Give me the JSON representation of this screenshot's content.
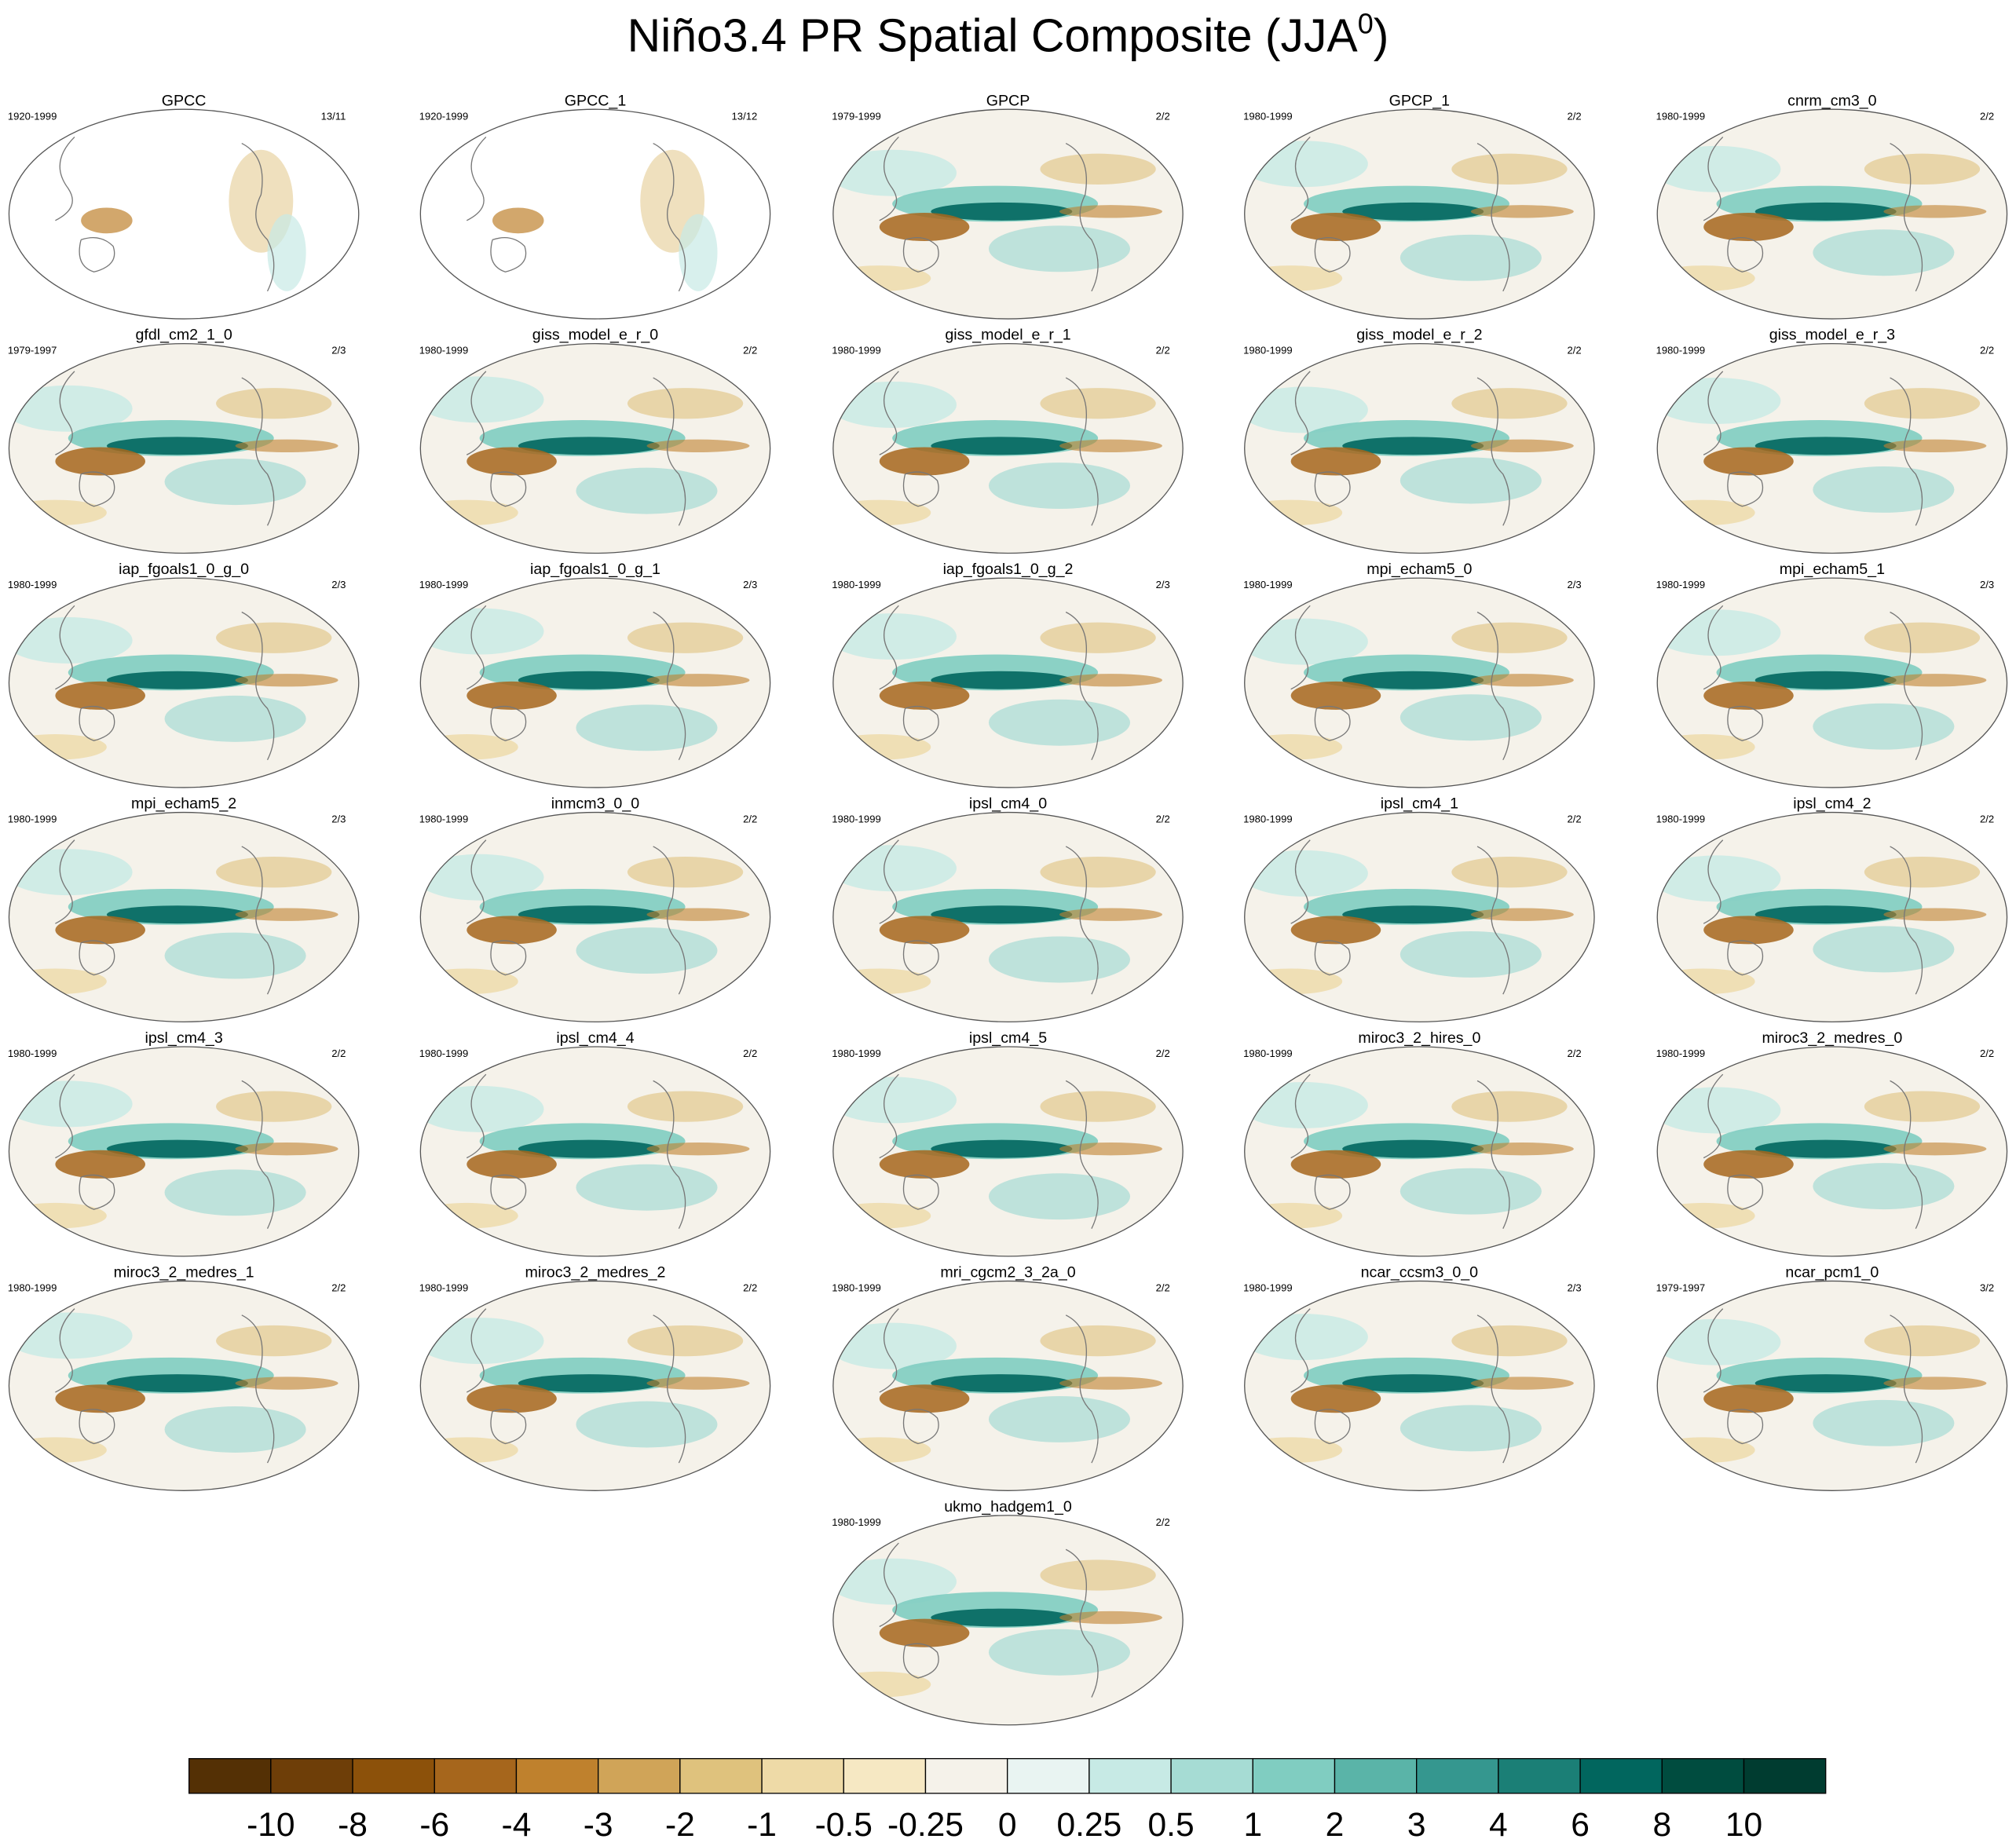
{
  "header": {
    "title": "Niño3.4 PR Spatial Composite (JJA",
    "superscript": "0",
    "close": ")"
  },
  "panels": [
    {
      "title": "GPCC",
      "period": "1920-1999",
      "ratio": "13/11"
    },
    {
      "title": "GPCC_1",
      "period": "1920-1999",
      "ratio": "13/12"
    },
    {
      "title": "GPCP",
      "period": "1979-1999",
      "ratio": "2/2"
    },
    {
      "title": "GPCP_1",
      "period": "1980-1999",
      "ratio": "2/2"
    },
    {
      "title": "cnrm_cm3_0",
      "period": "1980-1999",
      "ratio": "2/2"
    },
    {
      "title": "gfdl_cm2_1_0",
      "period": "1979-1997",
      "ratio": "2/3"
    },
    {
      "title": "giss_model_e_r_0",
      "period": "1980-1999",
      "ratio": "2/2"
    },
    {
      "title": "giss_model_e_r_1",
      "period": "1980-1999",
      "ratio": "2/2"
    },
    {
      "title": "giss_model_e_r_2",
      "period": "1980-1999",
      "ratio": "2/2"
    },
    {
      "title": "giss_model_e_r_3",
      "period": "1980-1999",
      "ratio": "2/2"
    },
    {
      "title": "iap_fgoals1_0_g_0",
      "period": "1980-1999",
      "ratio": "2/3"
    },
    {
      "title": "iap_fgoals1_0_g_1",
      "period": "1980-1999",
      "ratio": "2/3"
    },
    {
      "title": "iap_fgoals1_0_g_2",
      "period": "1980-1999",
      "ratio": "2/3"
    },
    {
      "title": "mpi_echam5_0",
      "period": "1980-1999",
      "ratio": "2/3"
    },
    {
      "title": "mpi_echam5_1",
      "period": "1980-1999",
      "ratio": "2/3"
    },
    {
      "title": "mpi_echam5_2",
      "period": "1980-1999",
      "ratio": "2/3"
    },
    {
      "title": "inmcm3_0_0",
      "period": "1980-1999",
      "ratio": "2/2"
    },
    {
      "title": "ipsl_cm4_0",
      "period": "1980-1999",
      "ratio": "2/2"
    },
    {
      "title": "ipsl_cm4_1",
      "period": "1980-1999",
      "ratio": "2/2"
    },
    {
      "title": "ipsl_cm4_2",
      "period": "1980-1999",
      "ratio": "2/2"
    },
    {
      "title": "ipsl_cm4_3",
      "period": "1980-1999",
      "ratio": "2/2"
    },
    {
      "title": "ipsl_cm4_4",
      "period": "1980-1999",
      "ratio": "2/2"
    },
    {
      "title": "ipsl_cm4_5",
      "period": "1980-1999",
      "ratio": "2/2"
    },
    {
      "title": "miroc3_2_hires_0",
      "period": "1980-1999",
      "ratio": "2/2"
    },
    {
      "title": "miroc3_2_medres_0",
      "period": "1980-1999",
      "ratio": "2/2"
    },
    {
      "title": "miroc3_2_medres_1",
      "period": "1980-1999",
      "ratio": "2/2"
    },
    {
      "title": "miroc3_2_medres_2",
      "period": "1980-1999",
      "ratio": "2/2"
    },
    {
      "title": "mri_cgcm2_3_2a_0",
      "period": "1980-1999",
      "ratio": "2/2"
    },
    {
      "title": "ncar_ccsm3_0_0",
      "period": "1980-1999",
      "ratio": "2/3"
    },
    {
      "title": "ncar_pcm1_0",
      "period": "1979-1997",
      "ratio": "3/2"
    },
    {
      "title": "ukmo_hadgem1_0",
      "period": "1980-1999",
      "ratio": "2/2"
    }
  ],
  "colorbar": {
    "colors": [
      "#543005",
      "#6e3e08",
      "#8c510a",
      "#a6661c",
      "#bf812d",
      "#d0a458",
      "#dfc27d",
      "#eedaa7",
      "#f6e8c3",
      "#f5f2ea",
      "#e9f4f2",
      "#c7eae5",
      "#a6dcd4",
      "#80cdc1",
      "#5ab4a8",
      "#35978f",
      "#1b7f76",
      "#01665e",
      "#004c3f",
      "#003c30"
    ],
    "labels": [
      "-10",
      "-8",
      "-6",
      "-4",
      "-3",
      "-2",
      "-1",
      "-0.5",
      "-0.25",
      "0",
      "0.25",
      "0.5",
      "1",
      "2",
      "3",
      "4",
      "6",
      "8",
      "10"
    ]
  }
}
